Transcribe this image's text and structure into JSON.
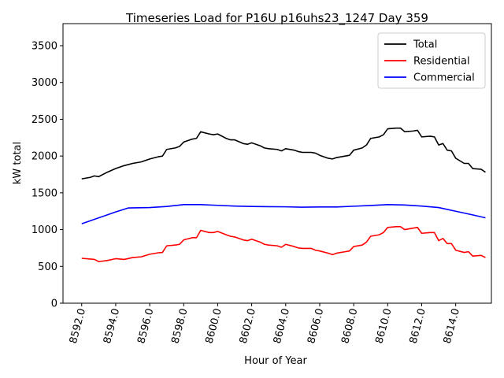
{
  "chart_data": {
    "type": "line",
    "title": "Timeseries Load for P16U p16uhs23_1247  Day 359",
    "xlabel": "Hour of Year",
    "ylabel": "kW total",
    "xlim": [
      8590.9,
      8616.1
    ],
    "ylim": [
      0,
      3800
    ],
    "xticks": [
      8592,
      8594,
      8596,
      8598,
      8600,
      8602,
      8604,
      8606,
      8608,
      8610,
      8612,
      8614
    ],
    "xtick_labels": [
      "8592.0",
      "8594.0",
      "8596.0",
      "8598.0",
      "8600.0",
      "8602.0",
      "8604.0",
      "8606.0",
      "8608.0",
      "8610.0",
      "8612.0",
      "8614.0"
    ],
    "yticks": [
      0,
      500,
      1000,
      1500,
      2000,
      2500,
      3000,
      3500
    ],
    "ytick_labels": [
      "0",
      "500",
      "1000",
      "1500",
      "2000",
      "2500",
      "3000",
      "3500"
    ],
    "legend_position": "top-right",
    "series": [
      {
        "name": "Total",
        "color": "#000000",
        "x": [
          8592.0,
          8592.5,
          8592.75,
          8593.0,
          8593.5,
          8594.0,
          8594.5,
          8595.0,
          8595.5,
          8596.0,
          8596.5,
          8596.75,
          8597.0,
          8597.5,
          8597.75,
          8598.0,
          8598.5,
          8598.75,
          8599.0,
          8599.5,
          8599.75,
          8600.0,
          8600.5,
          8600.75,
          8601.0,
          8601.5,
          8601.75,
          8602.0,
          8602.5,
          8602.75,
          8603.0,
          8603.5,
          8603.75,
          8604.0,
          8604.5,
          8604.75,
          8605.0,
          8605.5,
          8605.75,
          8606.0,
          8606.5,
          8606.75,
          8607.0,
          8607.5,
          8607.75,
          8608.0,
          8608.5,
          8608.75,
          8609.0,
          8609.5,
          8609.75,
          8610.0,
          8610.5,
          8610.75,
          8611.0,
          8611.5,
          8611.75,
          8612.0,
          8612.5,
          8612.75,
          8613.0,
          8613.25,
          8613.5,
          8613.75,
          8614.0,
          8614.5,
          8614.75,
          8615.0,
          8615.5,
          8615.75
        ],
        "y": [
          1690,
          1710,
          1730,
          1720,
          1780,
          1830,
          1870,
          1900,
          1920,
          1960,
          1990,
          2000,
          2090,
          2110,
          2130,
          2190,
          2230,
          2240,
          2330,
          2300,
          2290,
          2300,
          2240,
          2220,
          2220,
          2170,
          2160,
          2180,
          2140,
          2110,
          2100,
          2090,
          2070,
          2100,
          2080,
          2060,
          2050,
          2050,
          2040,
          2010,
          1970,
          1960,
          1980,
          2000,
          2010,
          2080,
          2110,
          2150,
          2240,
          2260,
          2290,
          2370,
          2380,
          2380,
          2330,
          2340,
          2350,
          2260,
          2270,
          2260,
          2150,
          2170,
          2080,
          2070,
          1970,
          1900,
          1900,
          1830,
          1820,
          1780
        ]
      },
      {
        "name": "Residential",
        "color": "#ff0000",
        "x": [
          8592.0,
          8592.5,
          8592.75,
          8593.0,
          8593.5,
          8594.0,
          8594.5,
          8595.0,
          8595.5,
          8596.0,
          8596.5,
          8596.75,
          8597.0,
          8597.5,
          8597.75,
          8598.0,
          8598.5,
          8598.75,
          8599.0,
          8599.5,
          8599.75,
          8600.0,
          8600.5,
          8600.75,
          8601.0,
          8601.5,
          8601.75,
          8602.0,
          8602.5,
          8602.75,
          8603.0,
          8603.5,
          8603.75,
          8604.0,
          8604.5,
          8604.75,
          8605.0,
          8605.5,
          8605.75,
          8606.0,
          8606.5,
          8606.75,
          8607.0,
          8607.5,
          8607.75,
          8608.0,
          8608.5,
          8608.75,
          8609.0,
          8609.5,
          8609.75,
          8610.0,
          8610.5,
          8610.75,
          8611.0,
          8611.5,
          8611.75,
          8612.0,
          8612.5,
          8612.75,
          8613.0,
          8613.25,
          8613.5,
          8613.75,
          8614.0,
          8614.5,
          8614.75,
          8615.0,
          8615.5,
          8615.75
        ],
        "y": [
          610,
          600,
          595,
          565,
          580,
          605,
          595,
          620,
          630,
          665,
          685,
          690,
          780,
          790,
          800,
          860,
          890,
          890,
          990,
          960,
          960,
          975,
          930,
          910,
          900,
          860,
          850,
          870,
          830,
          800,
          790,
          780,
          760,
          800,
          770,
          750,
          745,
          745,
          720,
          710,
          680,
          660,
          680,
          700,
          710,
          770,
          790,
          830,
          910,
          930,
          960,
          1030,
          1040,
          1040,
          1000,
          1020,
          1030,
          950,
          960,
          960,
          850,
          880,
          810,
          810,
          720,
          690,
          700,
          640,
          650,
          620
        ]
      },
      {
        "name": "Commercial",
        "color": "#0000ff",
        "x": [
          8592.0,
          8593.0,
          8594.0,
          8594.75,
          8596.0,
          8597.0,
          8598.0,
          8599.0,
          8600.0,
          8601.0,
          8602.0,
          8603.0,
          8604.0,
          8605.0,
          8606.0,
          8607.0,
          8608.0,
          8609.0,
          8610.0,
          8611.0,
          8612.0,
          8613.0,
          8614.0,
          8615.0,
          8615.75
        ],
        "y": [
          1080,
          1160,
          1240,
          1295,
          1300,
          1315,
          1340,
          1340,
          1330,
          1320,
          1315,
          1312,
          1310,
          1305,
          1308,
          1308,
          1318,
          1328,
          1340,
          1335,
          1320,
          1300,
          1250,
          1200,
          1160
        ]
      }
    ]
  }
}
